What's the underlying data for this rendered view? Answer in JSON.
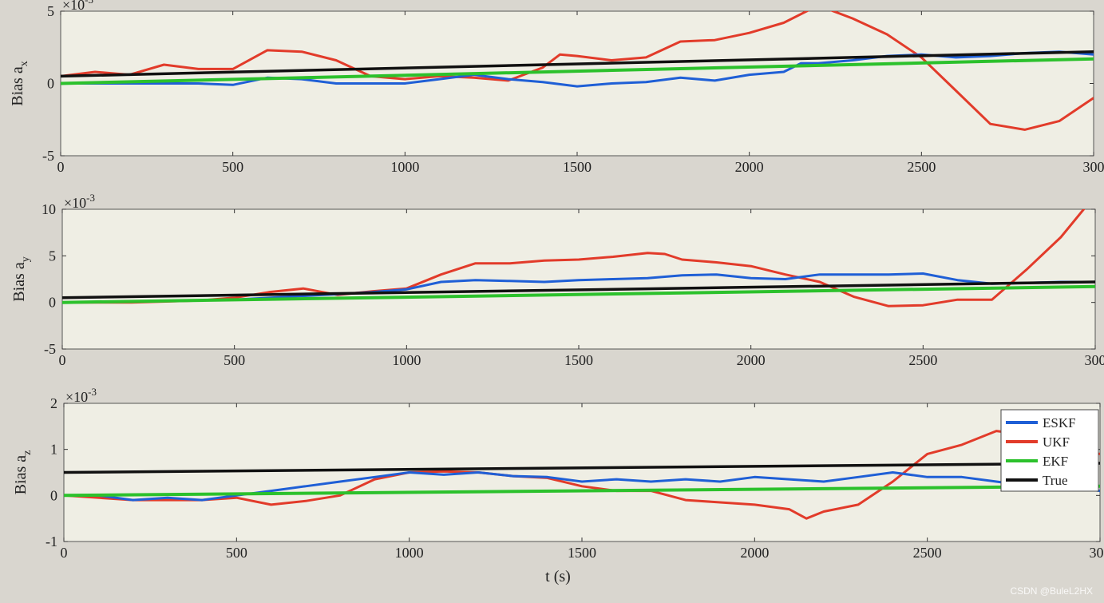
{
  "watermark": "CSDN @BuleL2HX",
  "colors": {
    "ESKF": "#1f5fd6",
    "UKF": "#e23b2a",
    "EKF": "#2cc12c",
    "True": "#111111",
    "plot_bg": "#efeee4",
    "figure_bg": "#d9d6cf"
  },
  "chart_data": [
    {
      "type": "line",
      "ylabel_main": "Bias a",
      "ylabel_sub": "x",
      "xlabel": "",
      "exponent_label": "×10",
      "exponent_power": "-3",
      "xlim": [
        0,
        3000
      ],
      "ylim": [
        -5,
        5
      ],
      "x_ticks": [
        "0",
        "500",
        "1000",
        "1500",
        "2000",
        "2500",
        "300"
      ],
      "y_ticks": [
        "5",
        "0",
        "-5"
      ],
      "series": [
        {
          "key": "UKF",
          "points": [
            [
              0,
              0.5
            ],
            [
              100,
              0.8
            ],
            [
              200,
              0.6
            ],
            [
              300,
              1.3
            ],
            [
              400,
              1.0
            ],
            [
              500,
              1.0
            ],
            [
              600,
              2.3
            ],
            [
              700,
              2.2
            ],
            [
              800,
              1.6
            ],
            [
              900,
              0.5
            ],
            [
              1000,
              0.3
            ],
            [
              1100,
              0.5
            ],
            [
              1200,
              0.4
            ],
            [
              1300,
              0.2
            ],
            [
              1400,
              1.1
            ],
            [
              1450,
              2.0
            ],
            [
              1500,
              1.9
            ],
            [
              1600,
              1.6
            ],
            [
              1700,
              1.8
            ],
            [
              1800,
              2.9
            ],
            [
              1900,
              3.0
            ],
            [
              2000,
              3.5
            ],
            [
              2100,
              4.2
            ],
            [
              2200,
              5.4
            ],
            [
              2300,
              4.5
            ],
            [
              2400,
              3.4
            ],
            [
              2500,
              1.8
            ],
            [
              2600,
              -0.5
            ],
            [
              2700,
              -2.8
            ],
            [
              2800,
              -3.2
            ],
            [
              2900,
              -2.6
            ],
            [
              3000,
              -1.0
            ]
          ]
        },
        {
          "key": "ESKF",
          "points": [
            [
              0,
              0
            ],
            [
              200,
              0
            ],
            [
              400,
              0
            ],
            [
              500,
              -0.1
            ],
            [
              600,
              0.4
            ],
            [
              700,
              0.3
            ],
            [
              800,
              0
            ],
            [
              900,
              0
            ],
            [
              1000,
              0
            ],
            [
              1100,
              0.3
            ],
            [
              1200,
              0.6
            ],
            [
              1300,
              0.3
            ],
            [
              1400,
              0.1
            ],
            [
              1500,
              -0.2
            ],
            [
              1600,
              0
            ],
            [
              1700,
              0.1
            ],
            [
              1800,
              0.4
            ],
            [
              1900,
              0.2
            ],
            [
              2000,
              0.6
            ],
            [
              2100,
              0.8
            ],
            [
              2150,
              1.4
            ],
            [
              2200,
              1.4
            ],
            [
              2300,
              1.6
            ],
            [
              2400,
              1.9
            ],
            [
              2500,
              2.0
            ],
            [
              2600,
              1.8
            ],
            [
              2700,
              1.9
            ],
            [
              2800,
              2.1
            ],
            [
              2900,
              2.2
            ],
            [
              3000,
              2.0
            ]
          ]
        },
        {
          "key": "EKF",
          "points": [
            [
              0,
              0
            ],
            [
              3000,
              1.7
            ]
          ]
        },
        {
          "key": "True",
          "points": [
            [
              0,
              0.5
            ],
            [
              3000,
              2.2
            ]
          ]
        }
      ]
    },
    {
      "type": "line",
      "ylabel_main": "Bias a",
      "ylabel_sub": "y",
      "xlabel": "",
      "exponent_label": "×10",
      "exponent_power": "-3",
      "xlim": [
        0,
        3000
      ],
      "ylim": [
        -5,
        10
      ],
      "x_ticks": [
        "0",
        "500",
        "1000",
        "1500",
        "2000",
        "2500",
        "300"
      ],
      "y_ticks": [
        "10",
        "5",
        "0",
        "-5"
      ],
      "series": [
        {
          "key": "UKF",
          "points": [
            [
              0,
              0
            ],
            [
              200,
              0
            ],
            [
              400,
              0.2
            ],
            [
              500,
              0.5
            ],
            [
              600,
              1.1
            ],
            [
              700,
              1.5
            ],
            [
              800,
              0.8
            ],
            [
              900,
              1.2
            ],
            [
              1000,
              1.5
            ],
            [
              1100,
              3.0
            ],
            [
              1200,
              4.2
            ],
            [
              1300,
              4.2
            ],
            [
              1400,
              4.5
            ],
            [
              1500,
              4.6
            ],
            [
              1600,
              4.9
            ],
            [
              1700,
              5.3
            ],
            [
              1750,
              5.2
            ],
            [
              1800,
              4.6
            ],
            [
              1900,
              4.3
            ],
            [
              2000,
              3.9
            ],
            [
              2100,
              3.0
            ],
            [
              2200,
              2.2
            ],
            [
              2300,
              0.6
            ],
            [
              2400,
              -0.4
            ],
            [
              2500,
              -0.3
            ],
            [
              2600,
              0.3
            ],
            [
              2700,
              0.3
            ],
            [
              2800,
              3.5
            ],
            [
              2900,
              7.0
            ],
            [
              3000,
              11.5
            ]
          ]
        },
        {
          "key": "ESKF",
          "points": [
            [
              0,
              0
            ],
            [
              500,
              0.3
            ],
            [
              800,
              0.9
            ],
            [
              900,
              1.1
            ],
            [
              1000,
              1.4
            ],
            [
              1100,
              2.2
            ],
            [
              1200,
              2.4
            ],
            [
              1300,
              2.3
            ],
            [
              1400,
              2.2
            ],
            [
              1500,
              2.4
            ],
            [
              1600,
              2.5
            ],
            [
              1700,
              2.6
            ],
            [
              1800,
              2.9
            ],
            [
              1900,
              3.0
            ],
            [
              2000,
              2.6
            ],
            [
              2100,
              2.5
            ],
            [
              2200,
              3.0
            ],
            [
              2300,
              3.0
            ],
            [
              2400,
              3.0
            ],
            [
              2500,
              3.1
            ],
            [
              2600,
              2.4
            ],
            [
              2700,
              2.0
            ],
            [
              2800,
              2.1
            ],
            [
              2900,
              2.2
            ],
            [
              3000,
              2.2
            ]
          ]
        },
        {
          "key": "EKF",
          "points": [
            [
              0,
              0
            ],
            [
              3000,
              1.7
            ]
          ]
        },
        {
          "key": "True",
          "points": [
            [
              0,
              0.5
            ],
            [
              3000,
              2.2
            ]
          ]
        }
      ]
    },
    {
      "type": "line",
      "ylabel_main": "Bias a",
      "ylabel_sub": "z",
      "xlabel": "t (s)",
      "exponent_label": "×10",
      "exponent_power": "-3",
      "xlim": [
        0,
        3000
      ],
      "ylim": [
        -1,
        2
      ],
      "x_ticks": [
        "0",
        "500",
        "1000",
        "1500",
        "2000",
        "2500",
        "300"
      ],
      "y_ticks": [
        "2",
        "1",
        "0",
        "-1"
      ],
      "legend_position": "top-right",
      "legend": [
        "ESKF",
        "UKF",
        "EKF",
        "True"
      ],
      "series": [
        {
          "key": "UKF",
          "points": [
            [
              0,
              0
            ],
            [
              200,
              -0.1
            ],
            [
              400,
              -0.1
            ],
            [
              500,
              -0.05
            ],
            [
              600,
              -0.2
            ],
            [
              700,
              -0.12
            ],
            [
              800,
              0
            ],
            [
              900,
              0.35
            ],
            [
              1000,
              0.5
            ],
            [
              1100,
              0.52
            ],
            [
              1200,
              0.5
            ],
            [
              1300,
              0.42
            ],
            [
              1400,
              0.38
            ],
            [
              1500,
              0.2
            ],
            [
              1600,
              0.1
            ],
            [
              1700,
              0.1
            ],
            [
              1800,
              -0.1
            ],
            [
              1900,
              -0.15
            ],
            [
              2000,
              -0.2
            ],
            [
              2100,
              -0.3
            ],
            [
              2150,
              -0.5
            ],
            [
              2200,
              -0.35
            ],
            [
              2300,
              -0.2
            ],
            [
              2400,
              0.3
            ],
            [
              2500,
              0.9
            ],
            [
              2600,
              1.1
            ],
            [
              2700,
              1.4
            ],
            [
              2800,
              1.3
            ],
            [
              2900,
              1.0
            ],
            [
              3000,
              0.9
            ]
          ]
        },
        {
          "key": "ESKF",
          "points": [
            [
              0,
              0
            ],
            [
              100,
              0
            ],
            [
              200,
              -0.1
            ],
            [
              300,
              -0.05
            ],
            [
              400,
              -0.1
            ],
            [
              500,
              0
            ],
            [
              600,
              0.1
            ],
            [
              700,
              0.2
            ],
            [
              800,
              0.3
            ],
            [
              900,
              0.4
            ],
            [
              1000,
              0.5
            ],
            [
              1100,
              0.45
            ],
            [
              1200,
              0.5
            ],
            [
              1300,
              0.42
            ],
            [
              1400,
              0.4
            ],
            [
              1500,
              0.3
            ],
            [
              1600,
              0.35
            ],
            [
              1700,
              0.3
            ],
            [
              1800,
              0.35
            ],
            [
              1900,
              0.3
            ],
            [
              2000,
              0.4
            ],
            [
              2100,
              0.35
            ],
            [
              2200,
              0.3
            ],
            [
              2300,
              0.4
            ],
            [
              2400,
              0.5
            ],
            [
              2500,
              0.4
            ],
            [
              2600,
              0.4
            ],
            [
              2700,
              0.3
            ],
            [
              2800,
              0.2
            ],
            [
              2900,
              0.2
            ],
            [
              3000,
              0.1
            ]
          ]
        },
        {
          "key": "EKF",
          "points": [
            [
              0,
              0
            ],
            [
              3000,
              0.2
            ]
          ]
        },
        {
          "key": "True",
          "points": [
            [
              0,
              0.5
            ],
            [
              3000,
              0.7
            ]
          ]
        }
      ]
    }
  ]
}
